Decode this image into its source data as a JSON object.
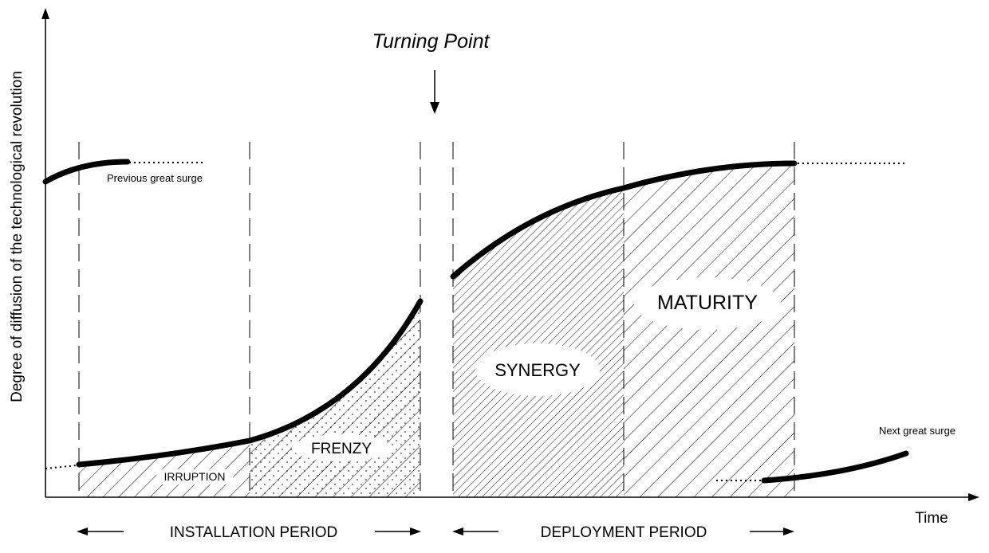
{
  "diagram": {
    "y_axis_label": "Degree of diffusion of the technological revolution",
    "x_axis_label": "Time",
    "turning_point": "Turning Point",
    "previous_surge": "Previous great surge",
    "next_surge": "Next great surge",
    "phases": {
      "irruption": "IRRUPTION",
      "frenzy": "FRENZY",
      "synergy": "SYNERGY",
      "maturity": "MATURITY"
    },
    "periods": {
      "installation": "INSTALLATION PERIOD",
      "deployment": "DEPLOYMENT PERIOD"
    }
  }
}
